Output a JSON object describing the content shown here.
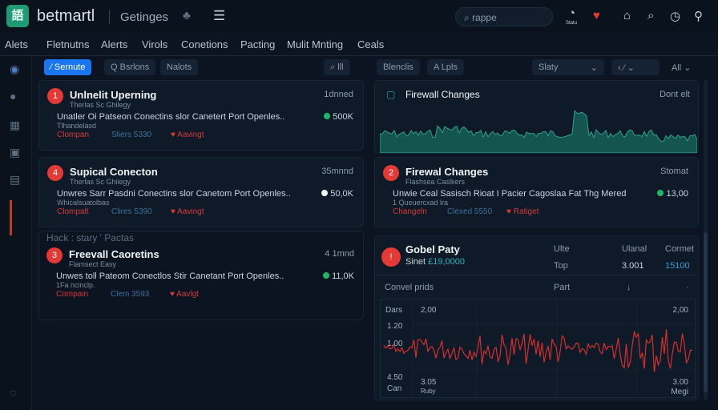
{
  "header": {
    "logo": "語",
    "brand": "betmartl",
    "app": "Getinges",
    "search_placeholder": "rappe",
    "status_label": "Statu"
  },
  "nav": [
    "Alets",
    "Fletnutns",
    "Alerts",
    "Virols",
    "Conetions",
    "Pacting",
    "Mulit Mnting",
    "Ceals"
  ],
  "toolbar": {
    "active": "Sernute",
    "b2": "Q Bsrlons",
    "b3": "Nalots",
    "b4": "⌕ lll",
    "b5": "Blenclis",
    "b6": "A Lpls",
    "select": "Slaty",
    "b7": "All"
  },
  "cards": [
    {
      "n": "1",
      "title": "Unlnelit Uperning",
      "sub": "Therlas Sc Ghilegy",
      "desc": "Unatler Oi Patseon Conectins slor Canetert Port Openles..",
      "desc2": "Tlhandelasd",
      "time": "1dnned",
      "value": "500K",
      "dot": "#1fb86a",
      "a": "Clompan",
      "b": "Sliers 5330",
      "c": "Aavingt"
    },
    {
      "n": "4",
      "title": "Supical Conecton",
      "sub": "Therlas Sc Ghilegy",
      "desc": "Unwres Sarr Pasdni Conectins slor Canetom Port Openles..",
      "desc2": "Whicalsuatolbas",
      "time": "35mnnd",
      "value": "50,0K",
      "dot": "#f2f4f6",
      "a": "Clompalt",
      "b": "Clires 5390",
      "c": "Aavingt"
    },
    {
      "n": "3",
      "title": "Freevall Caoretins",
      "sub": "Flamsect Easy",
      "desc": "Unwes toll Pateom Conectlos Stir Canetant Port Openles..",
      "desc2": "1Fa ncinclp.",
      "time": "4 1mnd",
      "value": "11,0K",
      "dot": "#1fb86a",
      "a": "Compain",
      "b": "Clem 3593",
      "c": "Aavlgt"
    }
  ],
  "section_label": "Hack : stary ' Pactas",
  "chart_panel": {
    "title": "Firewall Changes",
    "right": "Dont elt"
  },
  "card_right": {
    "n": "2",
    "title": "Firewal Changes",
    "sub": "Flashsea Caslkers",
    "desc": "Unwie Ceal Sasisch Rioat I Pacier Cagoslaa Fat Thg Mered",
    "desc2": "1 Queuercxad lra",
    "time": "Stomat",
    "value": "13,00",
    "dot": "#1fb86a",
    "a": "Changeln",
    "b": "Clexed 5550",
    "c": "Ratiget"
  },
  "panel": {
    "n": "!",
    "title": "Gobel Paty",
    "sub": "Sinet",
    "amount": "£19,0000",
    "cols": [
      "Ulte",
      "Ulanal",
      "Cormet"
    ],
    "row": [
      "Top",
      "3.001",
      "15100"
    ],
    "sub_row": [
      "Convel prids",
      "Part",
      "↓",
      "·"
    ],
    "chart": {
      "y_ticks": [
        "Dars",
        "1.20",
        "1.00",
        "4.50",
        "Can"
      ],
      "top_left": "2,00",
      "top_right": "2,00",
      "bottom_left": "3.05",
      "bottom_left2": "Ruby",
      "bottom_right": "3.00",
      "bottom_right2": "Megi"
    }
  },
  "colors": {
    "accent": "#1976f0",
    "alert": "#e53935",
    "teal": "#2a9d8f",
    "line": "#d32f2f"
  }
}
